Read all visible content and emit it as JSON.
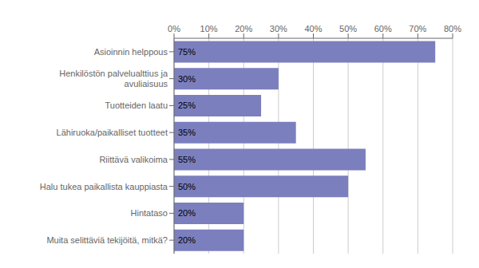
{
  "chart_data": {
    "type": "bar",
    "orientation": "horizontal",
    "categories": [
      "Muita selittäviä tekijöitä, mitkä?",
      "Hintataso",
      "Halu tukea paikallista kauppiasta",
      "Riittävä valikoima",
      "Lähiruoka/paikalliset tuotteet",
      "Tuotteiden laatu",
      "Henkilöstön palvelualttius ja\navuliaisuus",
      "Asioinnin helppous"
    ],
    "values": [
      20,
      20,
      50,
      55,
      35,
      25,
      30,
      75
    ],
    "value_labels": [
      "20%",
      "20%",
      "50%",
      "55%",
      "35%",
      "25%",
      "30%",
      "75%"
    ],
    "data_labels": true,
    "color": "#7b7fbe",
    "xlim": [
      0,
      80
    ],
    "xticks": [
      {
        "value": 0,
        "label": "0%"
      },
      {
        "value": 10,
        "label": "10%"
      },
      {
        "value": 20,
        "label": "20%"
      },
      {
        "value": 30,
        "label": "30%"
      },
      {
        "value": 40,
        "label": "40%"
      },
      {
        "value": 50,
        "label": "50%"
      },
      {
        "value": 60,
        "label": "60%"
      },
      {
        "value": 70,
        "label": "70%"
      },
      {
        "value": 80,
        "label": "80%"
      }
    ],
    "grid": true
  }
}
